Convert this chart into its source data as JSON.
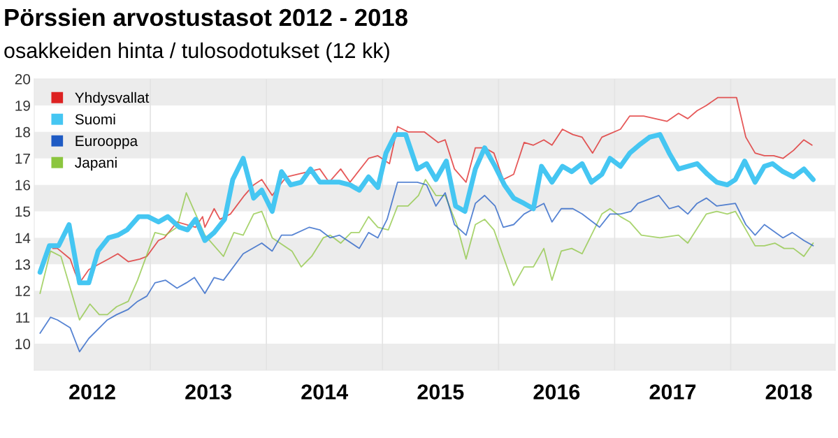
{
  "chart_data": {
    "type": "line",
    "title": "Pörssien arvostustasot 2012 - 2018",
    "subtitle": "osakkeiden hinta / tulosodotukset (12 kk)",
    "series": [
      {
        "name": "Yhdysvallat",
        "color": "#dd2222",
        "x": [
          2012.16,
          2012.2,
          2012.31,
          2012.35,
          2012.39,
          2012.47,
          2012.64,
          2012.72,
          2012.81,
          2012.91,
          2012.97,
          2013.07,
          2013.12,
          2013.23,
          2013.39,
          2013.45,
          2013.47,
          2013.55,
          2013.6,
          2013.69,
          2013.81,
          2013.89,
          2013.96,
          2014.05,
          2014.17,
          2014.46,
          2014.54,
          2014.64,
          2014.72,
          2014.88,
          2014.96,
          2015.06,
          2015.13,
          2015.22,
          2015.36,
          2015.48,
          2015.54,
          2015.62,
          2015.72,
          2015.8,
          2015.88,
          2015.96,
          2016.04,
          2016.13,
          2016.22,
          2016.3,
          2016.39,
          2016.46,
          2016.55,
          2016.64,
          2016.72,
          2016.81,
          2016.89,
          2017.05,
          2017.13,
          2017.25,
          2017.45,
          2017.55,
          2017.63,
          2017.71,
          2017.79,
          2017.89,
          2018.05,
          2018.13,
          2018.21,
          2018.29,
          2018.37,
          2018.45,
          2018.54,
          2018.63,
          2018.7
        ],
        "values": [
          13.6,
          13.6,
          13.2,
          12.7,
          12.3,
          12.8,
          13.2,
          13.4,
          13.1,
          13.2,
          13.3,
          13.9,
          14.0,
          14.6,
          14.4,
          14.8,
          14.4,
          15.1,
          14.7,
          14.9,
          15.6,
          16.0,
          16.2,
          15.6,
          16.3,
          16.6,
          16.1,
          16.6,
          16.1,
          17.0,
          17.1,
          16.8,
          18.2,
          18.0,
          18.0,
          17.6,
          17.7,
          16.6,
          16.1,
          17.4,
          17.4,
          17.2,
          16.2,
          16.4,
          17.6,
          17.5,
          17.7,
          17.5,
          18.1,
          17.9,
          17.8,
          17.2,
          17.8,
          18.1,
          18.6,
          18.6,
          18.4,
          18.7,
          18.5,
          18.8,
          19.0,
          19.3,
          19.3,
          17.8,
          17.2,
          17.1,
          17.1,
          17.0,
          17.3,
          17.7,
          17.5
        ]
      },
      {
        "name": "Suomi",
        "color": "#45c6f2",
        "x": [
          2012.05,
          2012.13,
          2012.21,
          2012.3,
          2012.39,
          2012.47,
          2012.55,
          2012.64,
          2012.72,
          2012.8,
          2012.9,
          2012.98,
          2013.07,
          2013.15,
          2013.25,
          2013.32,
          2013.39,
          2013.47,
          2013.55,
          2013.64,
          2013.71,
          2013.8,
          2013.89,
          2013.96,
          2014.05,
          2014.13,
          2014.21,
          2014.3,
          2014.38,
          2014.46,
          2014.55,
          2014.63,
          2014.72,
          2014.8,
          2014.88,
          2014.96,
          2015.03,
          2015.11,
          2015.2,
          2015.3,
          2015.38,
          2015.46,
          2015.55,
          2015.63,
          2015.71,
          2015.8,
          2015.88,
          2015.97,
          2016.05,
          2016.13,
          2016.22,
          2016.3,
          2016.37,
          2016.46,
          2016.55,
          2016.63,
          2016.72,
          2016.8,
          2016.89,
          2016.96,
          2017.05,
          2017.13,
          2017.21,
          2017.3,
          2017.39,
          2017.47,
          2017.55,
          2017.63,
          2017.71,
          2017.8,
          2017.88,
          2017.97,
          2018.04,
          2018.12,
          2018.21,
          2018.29,
          2018.36,
          2018.45,
          2018.54,
          2018.63,
          2018.71
        ],
        "values": [
          12.7,
          13.7,
          13.7,
          14.5,
          12.3,
          12.3,
          13.5,
          14.0,
          14.1,
          14.3,
          14.8,
          14.8,
          14.6,
          14.8,
          14.4,
          14.3,
          14.7,
          13.9,
          14.2,
          14.7,
          16.2,
          17.0,
          15.5,
          15.8,
          15.0,
          16.5,
          16.0,
          16.1,
          16.6,
          16.1,
          16.1,
          16.1,
          16.0,
          15.8,
          16.3,
          15.9,
          17.2,
          17.9,
          17.9,
          16.6,
          16.8,
          16.2,
          16.9,
          15.2,
          15.0,
          16.6,
          17.4,
          16.7,
          16.0,
          15.5,
          15.3,
          15.1,
          16.7,
          16.1,
          16.7,
          16.5,
          16.8,
          16.1,
          16.4,
          17.0,
          16.7,
          17.2,
          17.5,
          17.8,
          17.9,
          17.2,
          16.6,
          16.7,
          16.8,
          16.4,
          16.1,
          16.0,
          16.2,
          16.9,
          16.1,
          16.7,
          16.8,
          16.5,
          16.3,
          16.6,
          16.2
        ]
      },
      {
        "name": "Eurooppa",
        "color": "#1f5bc4",
        "x": [
          2012.05,
          2012.14,
          2012.2,
          2012.31,
          2012.39,
          2012.47,
          2012.63,
          2012.71,
          2012.81,
          2012.89,
          2012.97,
          2013.04,
          2013.13,
          2013.23,
          2013.31,
          2013.38,
          2013.47,
          2013.55,
          2013.63,
          2013.8,
          2013.96,
          2014.05,
          2014.13,
          2014.22,
          2014.37,
          2014.46,
          2014.55,
          2014.63,
          2014.8,
          2014.88,
          2014.96,
          2015.04,
          2015.13,
          2015.22,
          2015.3,
          2015.38,
          2015.46,
          2015.54,
          2015.62,
          2015.72,
          2015.8,
          2015.88,
          2015.97,
          2016.04,
          2016.13,
          2016.22,
          2016.39,
          2016.46,
          2016.54,
          2016.64,
          2016.72,
          2016.87,
          2016.96,
          2017.05,
          2017.14,
          2017.2,
          2017.38,
          2017.47,
          2017.55,
          2017.63,
          2017.71,
          2017.79,
          2017.88,
          2018.04,
          2018.13,
          2018.21,
          2018.29,
          2018.45,
          2018.53,
          2018.63,
          2018.71
        ],
        "values": [
          10.4,
          11.0,
          10.9,
          10.6,
          9.7,
          10.2,
          10.9,
          11.1,
          11.3,
          11.6,
          11.8,
          12.3,
          12.4,
          12.1,
          12.3,
          12.5,
          11.9,
          12.5,
          12.4,
          13.4,
          13.8,
          13.5,
          14.1,
          14.1,
          14.4,
          14.3,
          14.0,
          14.1,
          13.6,
          14.2,
          14.0,
          14.7,
          16.1,
          16.1,
          16.1,
          16.0,
          15.2,
          15.7,
          14.5,
          14.1,
          15.3,
          15.6,
          15.2,
          14.4,
          14.5,
          14.9,
          15.3,
          14.6,
          15.1,
          15.1,
          14.9,
          14.4,
          14.9,
          14.9,
          15.0,
          15.3,
          15.6,
          15.1,
          15.2,
          14.9,
          15.3,
          15.5,
          15.2,
          15.3,
          14.5,
          14.1,
          14.5,
          14.0,
          14.2,
          13.9,
          13.7
        ]
      },
      {
        "name": "Japani",
        "color": "#8cc63f",
        "x": [
          2012.05,
          2012.14,
          2012.23,
          2012.39,
          2012.48,
          2012.56,
          2012.63,
          2012.71,
          2012.81,
          2012.89,
          2013.04,
          2013.13,
          2013.23,
          2013.31,
          2013.39,
          2013.47,
          2013.63,
          2013.72,
          2013.8,
          2013.89,
          2013.96,
          2014.05,
          2014.22,
          2014.3,
          2014.39,
          2014.49,
          2014.55,
          2014.64,
          2014.73,
          2014.8,
          2014.88,
          2014.96,
          2015.05,
          2015.13,
          2015.22,
          2015.31,
          2015.37,
          2015.46,
          2015.54,
          2015.64,
          2015.72,
          2015.8,
          2015.88,
          2015.96,
          2016.04,
          2016.13,
          2016.22,
          2016.3,
          2016.39,
          2016.46,
          2016.54,
          2016.63,
          2016.72,
          2016.89,
          2016.96,
          2017.05,
          2017.13,
          2017.23,
          2017.39,
          2017.55,
          2017.63,
          2017.79,
          2017.88,
          2017.97,
          2018.04,
          2018.21,
          2018.29,
          2018.38,
          2018.46,
          2018.54,
          2018.63,
          2018.71
        ],
        "values": [
          11.9,
          13.5,
          13.3,
          10.9,
          11.5,
          11.1,
          11.1,
          11.4,
          11.6,
          12.4,
          14.2,
          14.1,
          14.4,
          15.7,
          14.9,
          14.1,
          13.3,
          14.2,
          14.1,
          14.9,
          15.0,
          14.0,
          13.5,
          12.9,
          13.3,
          14.0,
          14.1,
          13.8,
          14.2,
          14.2,
          14.8,
          14.4,
          14.3,
          15.2,
          15.2,
          15.6,
          16.2,
          15.6,
          15.6,
          14.5,
          13.2,
          14.5,
          14.7,
          14.3,
          13.3,
          12.2,
          12.9,
          12.9,
          13.6,
          12.4,
          13.5,
          13.6,
          13.4,
          14.9,
          15.1,
          14.8,
          14.6,
          14.1,
          14.0,
          14.1,
          13.8,
          14.9,
          15.0,
          14.9,
          15.0,
          13.7,
          13.7,
          13.8,
          13.6,
          13.6,
          13.3,
          13.8
        ]
      }
    ],
    "xlim": [
      2012,
      2018.9
    ],
    "xticks": [
      {
        "value": 2012.5,
        "label": "2012"
      },
      {
        "value": 2013.5,
        "label": "2013"
      },
      {
        "value": 2014.5,
        "label": "2014"
      },
      {
        "value": 2015.5,
        "label": "2015"
      },
      {
        "value": 2016.5,
        "label": "2016"
      },
      {
        "value": 2017.5,
        "label": "2017"
      },
      {
        "value": 2018.5,
        "label": "2018"
      }
    ],
    "ylim": [
      9,
      20
    ],
    "yticks": [
      10,
      11,
      12,
      13,
      14,
      15,
      16,
      17,
      18,
      19,
      20
    ],
    "ref_lines": [
      {
        "axis": "x",
        "value": 2013,
        "color": "#e3e3e3"
      },
      {
        "axis": "x",
        "value": 2014,
        "color": "#e3e3e3"
      },
      {
        "axis": "x",
        "value": 2015,
        "color": "#e3e3e3"
      },
      {
        "axis": "x",
        "value": 2016,
        "color": "#e3e3e3"
      },
      {
        "axis": "x",
        "value": 2017,
        "color": "#e3e3e3"
      },
      {
        "axis": "x",
        "value": 2018,
        "color": "#e3e3e3"
      }
    ],
    "bands": [
      {
        "axis": "y",
        "from": 9,
        "to": 10,
        "color": "#ececec"
      },
      {
        "axis": "y",
        "from": 11,
        "to": 12,
        "color": "#ececec"
      },
      {
        "axis": "y",
        "from": 13,
        "to": 14,
        "color": "#ececec"
      },
      {
        "axis": "y",
        "from": 15,
        "to": 16,
        "color": "#ececec"
      },
      {
        "axis": "y",
        "from": 17,
        "to": 18,
        "color": "#ececec"
      },
      {
        "axis": "y",
        "from": 19,
        "to": 20,
        "color": "#ececec"
      }
    ],
    "legend": "top left",
    "marker": "none",
    "line_style": "solid"
  }
}
